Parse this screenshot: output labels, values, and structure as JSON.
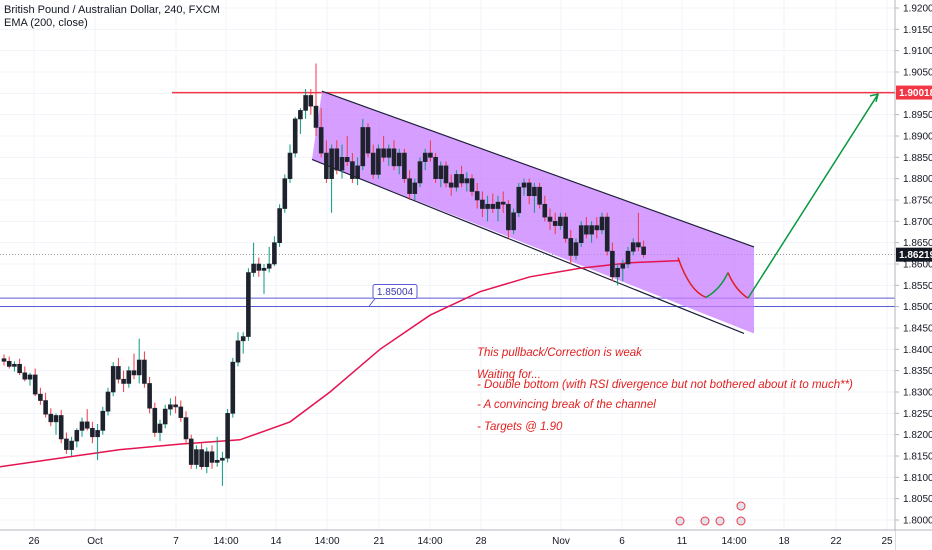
{
  "header": {
    "symbol_line": "British Pound / Australian Dollar, 240, FXCM",
    "indicator_line": "EMA (200, close)"
  },
  "chart_data": {
    "type": "candlestick",
    "title": "British Pound / Australian Dollar, 240, FXCM",
    "ylim": [
      1.797,
      1.925
    ],
    "y_ticks": [
      "1.92000",
      "1.91500",
      "1.91000",
      "1.90500",
      "1.90000",
      "1.89500",
      "1.89000",
      "1.88500",
      "1.88000",
      "1.87500",
      "1.87000",
      "1.86500",
      "1.86000",
      "1.85500",
      "1.85000",
      "1.84500",
      "1.84000",
      "1.83500",
      "1.83000",
      "1.82500",
      "1.82000",
      "1.81500",
      "1.81000",
      "1.80500",
      "1.80000"
    ],
    "x_ticks": [
      "26",
      "Oct",
      "7",
      "14:00",
      "14",
      "14:00",
      "21",
      "14:00",
      "28",
      "Nov",
      "6",
      "11",
      "14:00",
      "18",
      "22",
      "25"
    ],
    "resistance_line": {
      "price": 1.90018,
      "label": "1.90018",
      "color": "#f23645"
    },
    "support_lines": [
      {
        "price": 1.85004,
        "label": "1.85004",
        "color": "#5b5bd6"
      },
      {
        "price": 1.852,
        "color": "#5b5bd6"
      }
    ],
    "last_price": {
      "price": 1.86219,
      "label": "1.86219",
      "color": "#131722"
    },
    "channel": {
      "upper": {
        "from": 1.9005,
        "to": 1.864
      },
      "lower": {
        "from": 1.8845,
        "to": 1.847
      },
      "fill": "#c77dff",
      "stroke": "#1e1e3c"
    },
    "ema_label": "EMA (200, close)",
    "ema_color": "#e5134f",
    "up_color": "#089981",
    "down_color": "#f23645",
    "candles": [
      [
        1.8378,
        1.8388,
        1.8362,
        1.8372
      ],
      [
        1.8372,
        1.8383,
        1.8355,
        1.836
      ],
      [
        1.836,
        1.8372,
        1.8348,
        1.8365
      ],
      [
        1.8365,
        1.8378,
        1.834,
        1.8345
      ],
      [
        1.8345,
        1.836,
        1.8325,
        1.833
      ],
      [
        1.833,
        1.8345,
        1.8315,
        1.834
      ],
      [
        1.834,
        1.8355,
        1.829,
        1.8295
      ],
      [
        1.8295,
        1.831,
        1.827,
        1.828
      ],
      [
        1.828,
        1.8298,
        1.824,
        1.8248
      ],
      [
        1.8248,
        1.8262,
        1.822,
        1.823
      ],
      [
        1.823,
        1.825,
        1.82,
        1.8245
      ],
      [
        1.8245,
        1.8258,
        1.818,
        1.819
      ],
      [
        1.819,
        1.8205,
        1.8155,
        1.8165
      ],
      [
        1.8165,
        1.8195,
        1.815,
        1.8185
      ],
      [
        1.8185,
        1.8215,
        1.817,
        1.821
      ],
      [
        1.821,
        1.824,
        1.8195,
        1.823
      ],
      [
        1.823,
        1.826,
        1.821,
        1.8215
      ],
      [
        1.8215,
        1.823,
        1.818,
        1.8195
      ],
      [
        1.8195,
        1.8225,
        1.814,
        1.821
      ],
      [
        1.821,
        1.8265,
        1.82,
        1.8255
      ],
      [
        1.8255,
        1.831,
        1.8245,
        1.83
      ],
      [
        1.83,
        1.837,
        1.829,
        1.836
      ],
      [
        1.836,
        1.838,
        1.832,
        1.833
      ],
      [
        1.833,
        1.835,
        1.83,
        1.832
      ],
      [
        1.832,
        1.836,
        1.831,
        1.835
      ],
      [
        1.835,
        1.839,
        1.833,
        1.834
      ],
      [
        1.834,
        1.8425,
        1.832,
        1.8375
      ],
      [
        1.8375,
        1.8395,
        1.831,
        1.832
      ],
      [
        1.832,
        1.8335,
        1.825,
        1.8262
      ],
      [
        1.8262,
        1.8275,
        1.8195,
        1.8205
      ],
      [
        1.8205,
        1.8235,
        1.8185,
        1.8225
      ],
      [
        1.8225,
        1.827,
        1.8215,
        1.826
      ],
      [
        1.826,
        1.8285,
        1.8245,
        1.827
      ],
      [
        1.827,
        1.829,
        1.825,
        1.8265
      ],
      [
        1.8265,
        1.828,
        1.823,
        1.824
      ],
      [
        1.824,
        1.8255,
        1.818,
        1.819
      ],
      [
        1.819,
        1.82,
        1.812,
        1.813
      ],
      [
        1.813,
        1.8175,
        1.812,
        1.8165
      ],
      [
        1.8165,
        1.818,
        1.8118,
        1.8125
      ],
      [
        1.8125,
        1.817,
        1.811,
        1.816
      ],
      [
        1.816,
        1.8175,
        1.812,
        1.8135
      ],
      [
        1.8135,
        1.8195,
        1.8125,
        1.814
      ],
      [
        1.814,
        1.816,
        1.808,
        1.8145
      ],
      [
        1.8145,
        1.826,
        1.8135,
        1.825
      ],
      [
        1.825,
        1.838,
        1.824,
        1.837
      ],
      [
        1.837,
        1.844,
        1.836,
        1.842
      ],
      [
        1.842,
        1.844,
        1.839,
        1.843
      ],
      [
        1.843,
        1.859,
        1.842,
        1.858
      ],
      [
        1.858,
        1.865,
        1.857,
        1.86
      ],
      [
        1.86,
        1.8615,
        1.857,
        1.8585
      ],
      [
        1.8585,
        1.86,
        1.853,
        1.859
      ],
      [
        1.859,
        1.864,
        1.858,
        1.86
      ],
      [
        1.86,
        1.8665,
        1.8595,
        1.865
      ],
      [
        1.865,
        1.874,
        1.864,
        1.873
      ],
      [
        1.873,
        1.881,
        1.872,
        1.88
      ],
      [
        1.88,
        1.888,
        1.879,
        1.886
      ],
      [
        1.886,
        1.8945,
        1.885,
        1.894
      ],
      [
        1.894,
        1.8965,
        1.8905,
        1.896
      ],
      [
        1.896,
        1.901,
        1.894,
        1.8995
      ],
      [
        1.8995,
        1.901,
        1.895,
        1.897
      ],
      [
        1.897,
        1.907,
        1.89,
        1.892
      ],
      [
        1.892,
        1.8965,
        1.885,
        1.886
      ],
      [
        1.886,
        1.889,
        1.879,
        1.88
      ],
      [
        1.88,
        1.888,
        1.872,
        1.887
      ],
      [
        1.887,
        1.889,
        1.881,
        1.882
      ],
      [
        1.882,
        1.888,
        1.88,
        1.885
      ],
      [
        1.885,
        1.89,
        1.883,
        1.884
      ],
      [
        1.884,
        1.886,
        1.879,
        1.88
      ],
      [
        1.88,
        1.885,
        1.8785,
        1.883
      ],
      [
        1.883,
        1.894,
        1.882,
        1.892
      ],
      [
        1.892,
        1.893,
        1.885,
        1.886
      ],
      [
        1.886,
        1.888,
        1.88,
        1.881
      ],
      [
        1.881,
        1.888,
        1.88,
        1.887
      ],
      [
        1.887,
        1.89,
        1.884,
        1.885
      ],
      [
        1.885,
        1.888,
        1.883,
        1.887
      ],
      [
        1.887,
        1.889,
        1.882,
        1.883
      ],
      [
        1.883,
        1.887,
        1.881,
        1.886
      ],
      [
        1.886,
        1.887,
        1.879,
        1.88
      ],
      [
        1.88,
        1.882,
        1.875,
        1.8765
      ],
      [
        1.8765,
        1.88,
        1.875,
        1.879
      ],
      [
        1.879,
        1.885,
        1.878,
        1.884
      ],
      [
        1.884,
        1.887,
        1.882,
        1.886
      ],
      [
        1.886,
        1.889,
        1.884,
        1.885
      ],
      [
        1.885,
        1.886,
        1.879,
        1.88
      ],
      [
        1.88,
        1.884,
        1.878,
        1.883
      ],
      [
        1.883,
        1.884,
        1.878,
        1.879
      ],
      [
        1.879,
        1.881,
        1.876,
        1.878
      ],
      [
        1.878,
        1.882,
        1.877,
        1.881
      ],
      [
        1.881,
        1.883,
        1.878,
        1.879
      ],
      [
        1.879,
        1.8815,
        1.877,
        1.88
      ],
      [
        1.88,
        1.881,
        1.876,
        1.877
      ],
      [
        1.877,
        1.879,
        1.873,
        1.875
      ],
      [
        1.875,
        1.877,
        1.871,
        1.873
      ],
      [
        1.873,
        1.876,
        1.87,
        1.874
      ],
      [
        1.874,
        1.8765,
        1.872,
        1.873
      ],
      [
        1.873,
        1.876,
        1.87,
        1.8745
      ],
      [
        1.8745,
        1.877,
        1.872,
        1.874
      ],
      [
        1.874,
        1.875,
        1.866,
        1.868
      ],
      [
        1.868,
        1.873,
        1.867,
        1.872
      ],
      [
        1.872,
        1.879,
        1.871,
        1.878
      ],
      [
        1.878,
        1.88,
        1.876,
        1.879
      ],
      [
        1.879,
        1.88,
        1.874,
        1.876
      ],
      [
        1.876,
        1.879,
        1.872,
        1.878
      ],
      [
        1.878,
        1.879,
        1.873,
        1.874
      ],
      [
        1.874,
        1.876,
        1.87,
        1.871
      ],
      [
        1.871,
        1.873,
        1.868,
        1.87
      ],
      [
        1.87,
        1.872,
        1.867,
        1.869
      ],
      [
        1.869,
        1.872,
        1.868,
        1.871
      ],
      [
        1.871,
        1.872,
        1.865,
        1.866
      ],
      [
        1.866,
        1.868,
        1.86,
        1.862
      ],
      [
        1.862,
        1.866,
        1.861,
        1.865
      ],
      [
        1.865,
        1.87,
        1.864,
        1.869
      ],
      [
        1.869,
        1.871,
        1.866,
        1.867
      ],
      [
        1.867,
        1.87,
        1.865,
        1.869
      ],
      [
        1.869,
        1.871,
        1.866,
        1.868
      ],
      [
        1.868,
        1.872,
        1.867,
        1.871
      ],
      [
        1.871,
        1.872,
        1.862,
        1.863
      ],
      [
        1.863,
        1.865,
        1.856,
        1.857
      ],
      [
        1.857,
        1.86,
        1.855,
        1.859
      ],
      [
        1.859,
        1.861,
        1.856,
        1.86
      ],
      [
        1.86,
        1.864,
        1.859,
        1.863
      ],
      [
        1.863,
        1.866,
        1.862,
        1.865
      ],
      [
        1.865,
        1.872,
        1.863,
        1.864
      ],
      [
        1.864,
        1.8655,
        1.8615,
        1.8622
      ]
    ],
    "annotations": [
      "This pullback/Correction is weak",
      "Waiting for...",
      "- Double bottom (with RSI divergence but not bothered about it to much**)",
      "- A convincing break of the channel",
      "- Targets @ 1.90"
    ],
    "grid": true,
    "legend": "none"
  }
}
